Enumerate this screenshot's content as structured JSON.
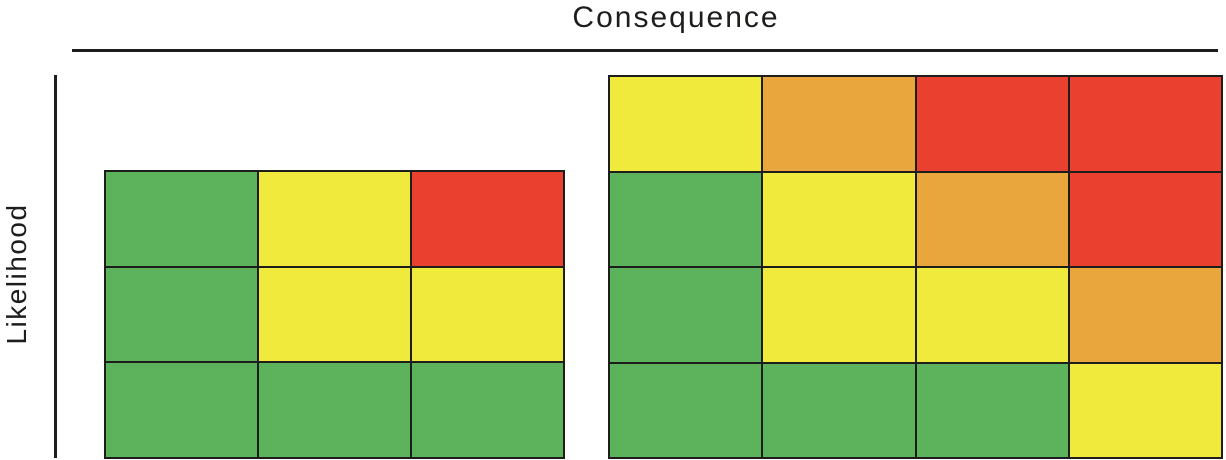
{
  "figure": {
    "title": "Consequence",
    "ylabel": "Likelihood"
  },
  "colors": {
    "green": "#5CB35C",
    "yellow": "#F0EA3D",
    "orange": "#E8A63C",
    "red": "#E9402F",
    "axis_line": "#1D1D1B"
  },
  "chart_data": [
    {
      "type": "heatmap",
      "name": "simple-risk-matrix-3x3",
      "xlabel": "Consequence",
      "ylabel": "Likelihood",
      "rows": 3,
      "cols": 3,
      "cells": [
        [
          "green",
          "yellow",
          "red"
        ],
        [
          "green",
          "yellow",
          "yellow"
        ],
        [
          "green",
          "green",
          "green"
        ]
      ]
    },
    {
      "type": "heatmap",
      "name": "detailed-risk-matrix-4x4",
      "xlabel": "Consequence",
      "ylabel": "Likelihood",
      "rows": 4,
      "cols": 4,
      "cells": [
        [
          "yellow",
          "orange",
          "red",
          "red"
        ],
        [
          "green",
          "yellow",
          "orange",
          "red"
        ],
        [
          "green",
          "yellow",
          "yellow",
          "orange"
        ],
        [
          "green",
          "green",
          "green",
          "yellow"
        ]
      ]
    }
  ]
}
